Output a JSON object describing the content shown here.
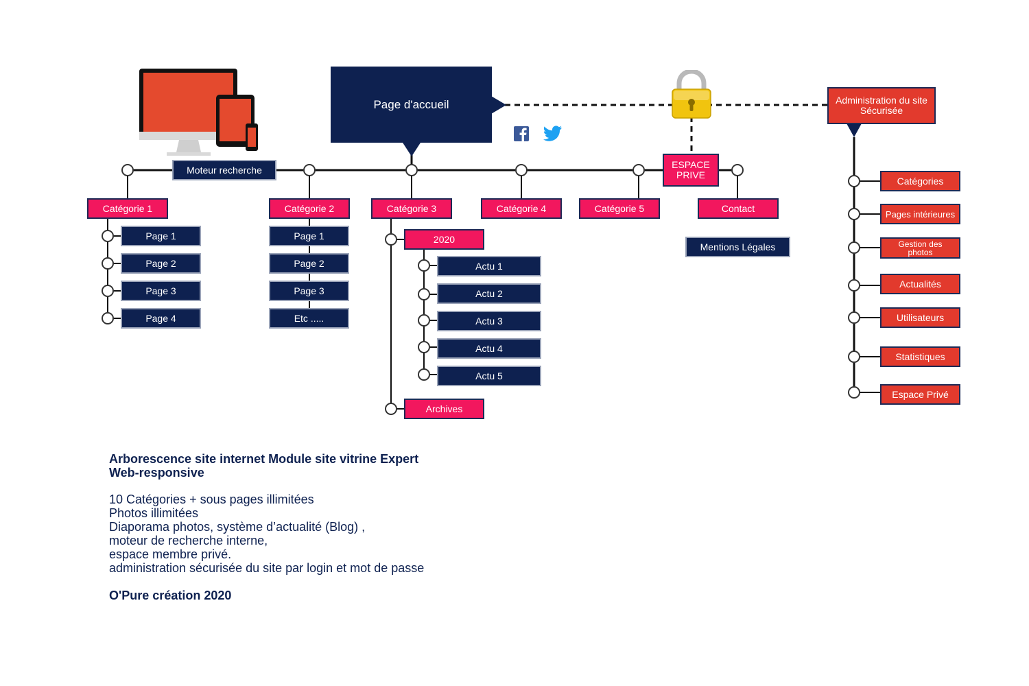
{
  "home": {
    "label": "Page d'accueil"
  },
  "search": {
    "label": "Moteur recherche"
  },
  "espace_prive": {
    "line1": "ESPACE",
    "line2": "PRIVE"
  },
  "admin": {
    "line1": "Administration du site",
    "line2": "Sécurisée"
  },
  "categories": {
    "c1": "Catégorie 1",
    "c2": "Catégorie 2",
    "c3": "Catégorie 3",
    "c4": "Catégorie 4",
    "c5": "Catégorie 5",
    "contact": "Contact"
  },
  "cat1_pages": [
    "Page 1",
    "Page 2",
    "Page 3",
    "Page 4"
  ],
  "cat2_pages": [
    "Page 1",
    "Page 2",
    "Page 3",
    "Etc ....."
  ],
  "year": "2020",
  "actus": [
    "Actu 1",
    "Actu 2",
    "Actu 3",
    "Actu 4",
    "Actu 5"
  ],
  "archives": "Archives",
  "mentions": "Mentions Légales",
  "admin_items": {
    "categories": "Catégories",
    "pages": "Pages intérieures",
    "photos_line1": "Gestion des",
    "photos_line2": "photos",
    "actualites": "Actualités",
    "utilisateurs": "Utilisateurs",
    "statistiques": "Statistiques",
    "espace_prive": "Espace Privé"
  },
  "info": {
    "title_line1": "Arborescence site internet  Module site vitrine Expert",
    "title_line2": "Web-responsive",
    "lines": [
      "10 Catégories + sous pages illimitées",
      "Photos illimitées",
      "Diaporama photos, système d’actualité  (Blog) ,",
      "moteur de recherche interne,",
      "espace membre privé.",
      "administration sécurisée du site par login et mot de passe"
    ],
    "credit": "O'Pure création 2020"
  },
  "icons": [
    "devices-icon",
    "lock-icon",
    "facebook-icon",
    "twitter-icon"
  ],
  "colors": {
    "navy": "#0e2150",
    "pink": "#f2175e",
    "red": "#e23a2d",
    "twitter": "#1da1f2",
    "facebook": "#3b5998",
    "lock": "#f1c40f"
  }
}
